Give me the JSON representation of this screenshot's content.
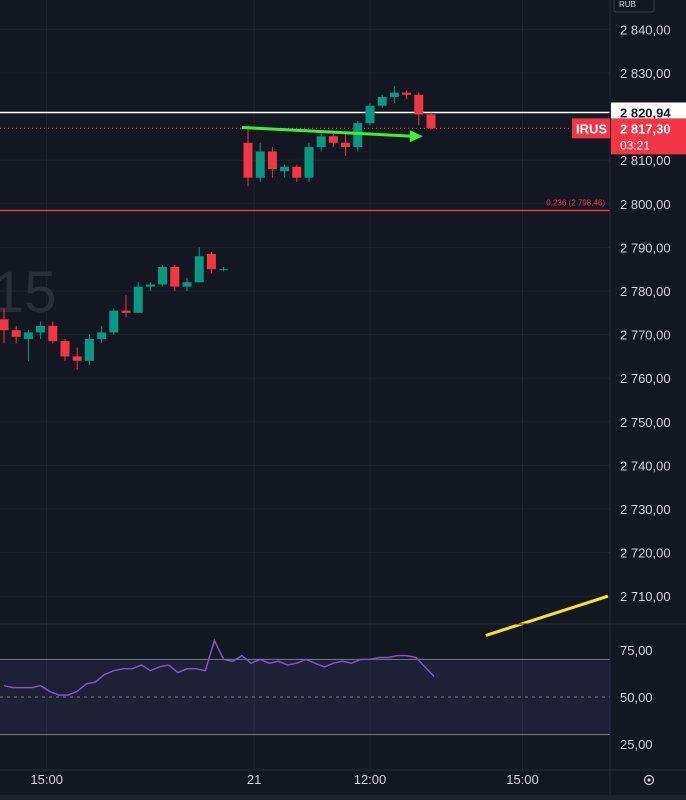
{
  "currency_badge": "RUB",
  "chart_data": {
    "type": "candlestick",
    "symbol": "IRUS",
    "price_axis": {
      "min": 2700,
      "max": 2850,
      "ticks": [
        2840,
        2830,
        2820,
        2810,
        2800,
        2790,
        2780,
        2770,
        2760,
        2750,
        2740,
        2730,
        2720,
        2710
      ],
      "tick_labels": [
        "2 840,00",
        "2 830,00",
        "2 820,00",
        "2 810,00",
        "2 800,00",
        "2 790,00",
        "2 780,00",
        "2 770,00",
        "2 760,00",
        "2 750,00",
        "2 740,00",
        "2 730,00",
        "2 720,00",
        "2 710,00"
      ]
    },
    "time_axis": {
      "labels": [
        {
          "label": "15:00",
          "slot": 3.5
        },
        {
          "label": "21",
          "slot": 20.5
        },
        {
          "label": "12:00",
          "slot": 30
        },
        {
          "label": "15:00",
          "slot": 42.5
        }
      ]
    },
    "candles": [
      {
        "slot": 0,
        "o": 2773.5,
        "h": 2776,
        "l": 2768,
        "c": 2771
      },
      {
        "slot": 1,
        "o": 2771,
        "h": 2772,
        "l": 2768,
        "c": 2769.5
      },
      {
        "slot": 2,
        "o": 2769,
        "h": 2771,
        "l": 2764,
        "c": 2770.5
      },
      {
        "slot": 3,
        "o": 2770.5,
        "h": 2773,
        "l": 2769,
        "c": 2772
      },
      {
        "slot": 4,
        "o": 2772,
        "h": 2773,
        "l": 2768,
        "c": 2768.5
      },
      {
        "slot": 5,
        "o": 2768.5,
        "h": 2769,
        "l": 2764,
        "c": 2765
      },
      {
        "slot": 6,
        "o": 2765,
        "h": 2767,
        "l": 2762,
        "c": 2764
      },
      {
        "slot": 7,
        "o": 2764,
        "h": 2770,
        "l": 2763,
        "c": 2769
      },
      {
        "slot": 8,
        "o": 2769,
        "h": 2772,
        "l": 2768,
        "c": 2770.5
      },
      {
        "slot": 9,
        "o": 2770.5,
        "h": 2776,
        "l": 2770,
        "c": 2775.5
      },
      {
        "slot": 10,
        "o": 2775.5,
        "h": 2779,
        "l": 2774,
        "c": 2775
      },
      {
        "slot": 11,
        "o": 2775,
        "h": 2782,
        "l": 2775,
        "c": 2781
      },
      {
        "slot": 12,
        "o": 2781,
        "h": 2782,
        "l": 2780,
        "c": 2781.5
      },
      {
        "slot": 13,
        "o": 2781.5,
        "h": 2786,
        "l": 2781,
        "c": 2785.5
      },
      {
        "slot": 14,
        "o": 2785.5,
        "h": 2786,
        "l": 2780,
        "c": 2781
      },
      {
        "slot": 15,
        "o": 2781,
        "h": 2783,
        "l": 2780,
        "c": 2782
      },
      {
        "slot": 16,
        "o": 2782,
        "h": 2790,
        "l": 2782,
        "c": 2788
      },
      {
        "slot": 17,
        "o": 2788.5,
        "h": 2789,
        "l": 2784,
        "c": 2785
      },
      {
        "slot": 18,
        "o": 2785,
        "h": 2785.5,
        "l": 2784.5,
        "c": 2785
      },
      {
        "slot": 20,
        "o": 2814,
        "h": 2818,
        "l": 2804,
        "c": 2806
      },
      {
        "slot": 21,
        "o": 2806,
        "h": 2814,
        "l": 2805,
        "c": 2812
      },
      {
        "slot": 22,
        "o": 2812,
        "h": 2813,
        "l": 2806,
        "c": 2808
      },
      {
        "slot": 23,
        "o": 2807.5,
        "h": 2809,
        "l": 2806,
        "c": 2808.5
      },
      {
        "slot": 24,
        "o": 2808.5,
        "h": 2809,
        "l": 2805,
        "c": 2806
      },
      {
        "slot": 25,
        "o": 2806,
        "h": 2814,
        "l": 2805,
        "c": 2813
      },
      {
        "slot": 26,
        "o": 2813,
        "h": 2816,
        "l": 2812,
        "c": 2815.5
      },
      {
        "slot": 27,
        "o": 2815.5,
        "h": 2816,
        "l": 2813,
        "c": 2814
      },
      {
        "slot": 28,
        "o": 2814,
        "h": 2816,
        "l": 2811,
        "c": 2813
      },
      {
        "slot": 29,
        "o": 2813,
        "h": 2819,
        "l": 2812,
        "c": 2818.5
      },
      {
        "slot": 30,
        "o": 2818.5,
        "h": 2823,
        "l": 2818,
        "c": 2822.5
      },
      {
        "slot": 31,
        "o": 2822.5,
        "h": 2825,
        "l": 2822,
        "c": 2824.5
      },
      {
        "slot": 32,
        "o": 2824.5,
        "h": 2827,
        "l": 2823,
        "c": 2825.5
      },
      {
        "slot": 33,
        "o": 2825.5,
        "h": 2826,
        "l": 2824,
        "c": 2825
      },
      {
        "slot": 34,
        "o": 2825,
        "h": 2825.5,
        "l": 2818,
        "c": 2820.5
      },
      {
        "slot": 35,
        "o": 2820.5,
        "h": 2821,
        "l": 2817,
        "c": 2817.3
      }
    ],
    "current_price": {
      "value": 2817.3,
      "label": "2 817,30",
      "countdown": "03:21",
      "symbol": "IRUS"
    },
    "horizontal_line": {
      "value": 2820.94,
      "label": "2 820,94"
    },
    "fib_level": {
      "value": 2798.46,
      "label": "0,236 (2 798,46)"
    },
    "watermark": "15",
    "green_arrow": {
      "from": {
        "slot": 19.5,
        "price": 2817.5
      },
      "to": {
        "slot": 34,
        "price": 2815.5
      }
    },
    "yellow_trend": {
      "from": {
        "slot": 39.5,
        "price": 2701
      },
      "to": {
        "slot": 49.5,
        "price": 2710
      }
    },
    "rsi": {
      "ticks": [
        75,
        50,
        25
      ],
      "tick_labels": [
        "75,00",
        "50,00",
        "25,00"
      ],
      "band_top": 70,
      "band_bottom": 30,
      "midline": 50,
      "values": [
        56,
        55,
        55,
        55,
        56,
        53,
        51,
        51,
        53,
        57,
        58,
        62,
        64,
        65,
        65,
        67,
        64,
        66,
        67,
        63,
        65,
        65,
        64,
        80,
        70,
        69,
        72,
        68,
        70,
        68,
        69,
        67,
        68,
        70,
        68,
        66,
        68,
        69,
        68,
        70,
        70,
        71,
        71,
        72,
        72,
        71,
        66,
        61
      ]
    }
  }
}
